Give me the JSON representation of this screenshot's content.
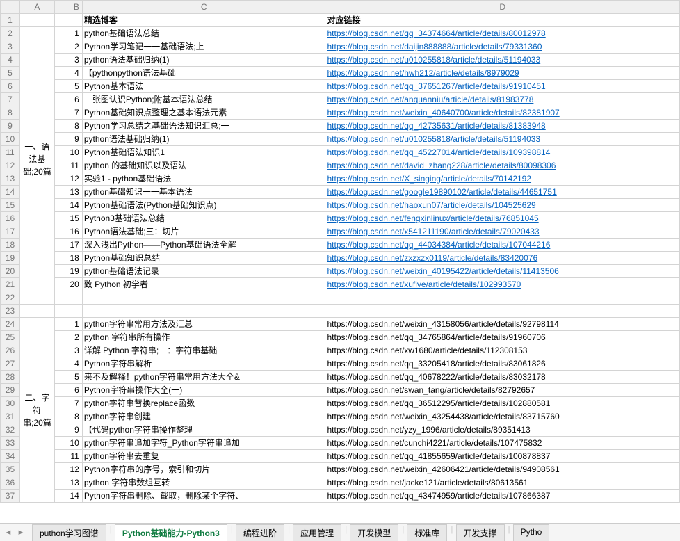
{
  "colHeaders": [
    "A",
    "B",
    "C",
    "D"
  ],
  "headerRow": {
    "c": "精选博客",
    "d": "对应链接"
  },
  "section1": {
    "label": "一、语\n法基\n础;20篇",
    "rows": [
      {
        "n": 1,
        "c": "python基础语法总结",
        "d": "https://blog.csdn.net/qq_34374664/article/details/80012978",
        "link": true
      },
      {
        "n": 2,
        "c": "Python学习笔记一一基础语法;上",
        "d": "https://blog.csdn.net/daijin888888/article/details/79331360",
        "link": true
      },
      {
        "n": 3,
        "c": "python语法基础归纳(1)",
        "d": "https://blog.csdn.net/u010255818/article/details/51194033",
        "link": true
      },
      {
        "n": 4,
        "c": "【pythonpython语法基础",
        "d": "https://blog.csdn.net/hwh212/article/details/8979029",
        "link": true
      },
      {
        "n": 5,
        "c": "Python基本语法",
        "d": "https://blog.csdn.net/qq_37651267/article/details/91910451",
        "link": true
      },
      {
        "n": 6,
        "c": "一张图认识Python;附基本语法总结",
        "d": "https://blog.csdn.net/anquanniu/article/details/81983778",
        "link": true
      },
      {
        "n": 7,
        "c": "Python基础知识点整理之基本语法元素",
        "d": "https://blog.csdn.net/weixin_40640700/article/details/82381907",
        "link": true
      },
      {
        "n": 8,
        "c": "Python学习总结之基础语法知识汇总;一",
        "d": "https://blog.csdn.net/qq_42735631/article/details/81383948",
        "link": true
      },
      {
        "n": 9,
        "c": "python语法基础归纳(1)",
        "d": "https://blog.csdn.net/u010255818/article/details/51194033",
        "link": true
      },
      {
        "n": 10,
        "c": "Python基础语法知识1",
        "d": "https://blog.csdn.net/qq_45227014/article/details/109398814",
        "link": true
      },
      {
        "n": 11,
        "c": "python   的基础知识以及语法",
        "d": "https://blog.csdn.net/david_zhang228/article/details/80098306",
        "link": true
      },
      {
        "n": 12,
        "c": "实验1 -   python基础语法",
        "d": "https://blog.csdn.net/X_singing/article/details/70142192",
        "link": true
      },
      {
        "n": 13,
        "c": "python基础知识一一基本语法",
        "d": "https://blog.csdn.net/google19890102/article/details/44651751",
        "link": true
      },
      {
        "n": 14,
        "c": "Python基础语法(Python基础知识点)",
        "d": "https://blog.csdn.net/haoxun07/article/details/104525629",
        "link": true
      },
      {
        "n": 15,
        "c": "Python3基础语法总结",
        "d": "https://blog.csdn.net/fengxinlinux/article/details/76851045",
        "link": true
      },
      {
        "n": 16,
        "c": "Python语法基础;三&#xff1a;切片",
        "d": "https://blog.csdn.net/x541211190/article/details/79020433",
        "link": true
      },
      {
        "n": 17,
        "c": "深入浅出Python——Python基础语法全解",
        "d": "https://blog.csdn.net/qq_44034384/article/details/107044216",
        "link": true
      },
      {
        "n": 18,
        "c": "Python基础知识总结",
        "d": "https://blog.csdn.net/zxzxzx0119/article/details/83420076",
        "link": true
      },
      {
        "n": 19,
        "c": "python基础语法记录",
        "d": "https://blog.csdn.net/weixin_40195422/article/details/11413506",
        "link": true
      },
      {
        "n": 20,
        "c": "致   Python   初学者",
        "d": "https://blog.csdn.net/xufive/article/details/102993570",
        "link": true
      }
    ]
  },
  "section2": {
    "label": "二、字符\n串;20篇",
    "rows": [
      {
        "n": 1,
        "c": "python字符串常用方法及汇总",
        "d": "https://blog.csdn.net/weixin_43158056/article/details/92798114",
        "link": false
      },
      {
        "n": 2,
        "c": "python   字符串所有操作",
        "d": "https://blog.csdn.net/qq_34765864/article/details/91960706",
        "link": false
      },
      {
        "n": 3,
        "c": "详解   Python   字符串;一&#xff1a;字符串基础",
        "d": "https://blog.csdn.net/xw1680/article/details/112308153",
        "link": false
      },
      {
        "n": 4,
        "c": "Python字符串解析",
        "d": "https://blog.csdn.net/qq_33205418/article/details/83061826",
        "link": false
      },
      {
        "n": 5,
        "c": "来不及解释&#xff01;python字符串常用方法大全&",
        "d": "https://blog.csdn.net/qq_40678222/article/details/83032178",
        "link": false
      },
      {
        "n": 6,
        "c": "Python字符串操作大全(一)",
        "d": "https://blog.csdn.net/swan_tang/article/details/82792657",
        "link": false
      },
      {
        "n": 7,
        "c": "python字符串替换replace函数",
        "d": "https://blog.csdn.net/qq_36512295/article/details/102880581",
        "link": false
      },
      {
        "n": 8,
        "c": "python字符串创建",
        "d": "https://blog.csdn.net/weixin_43254438/article/details/83715760",
        "link": false
      },
      {
        "n": 9,
        "c": "【代码python字符串操作整理",
        "d": "https://blog.csdn.net/yzy_1996/article/details/89351413",
        "link": false
      },
      {
        "n": 10,
        "c": "python字符串追加字符_Python字符串追加",
        "d": "https://blog.csdn.net/cunchi4221/article/details/107475832",
        "link": false
      },
      {
        "n": 11,
        "c": "python字符串去重复",
        "d": "https://blog.csdn.net/qq_41855659/article/details/100878837",
        "link": false
      },
      {
        "n": 12,
        "c": "Python字符串的序号，索引和切片",
        "d": "https://blog.csdn.net/weixin_42606421/article/details/94908561",
        "link": false
      },
      {
        "n": 13,
        "c": "python   字符串数组互转",
        "d": "https://blog.csdn.net/jacke121/article/details/80613561",
        "link": false
      },
      {
        "n": 14,
        "c": "Python字符串删除、截取&#xff0c;删除某个字符、",
        "d": "https://blog.csdn.net/qq_43474959/article/details/107866387",
        "link": false
      }
    ]
  },
  "tabs": [
    "puthon学习图谱",
    "Python基础能力-Python3",
    "编程进阶",
    "应用管理",
    "开发模型",
    "标准库",
    "开发支撑",
    "Pytho"
  ],
  "activeTab": 1
}
